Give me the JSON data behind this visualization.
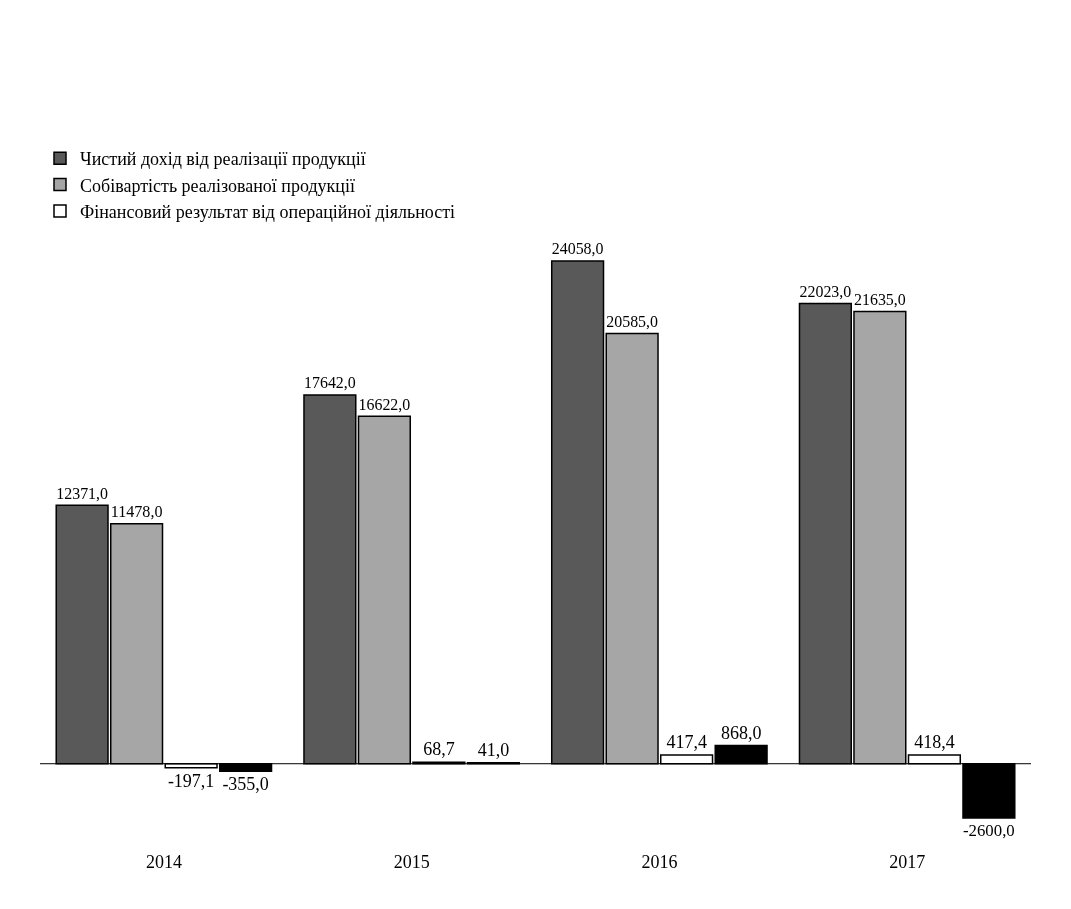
{
  "chart_data": {
    "type": "bar",
    "categories": [
      "2014",
      "2015",
      "2016",
      "2017"
    ],
    "series": [
      {
        "name": "Чистий дохід від реалізації продукції",
        "color": "#595959",
        "values": [
          12371.0,
          17642.0,
          24058.0,
          22023.0
        ],
        "value_labels": [
          "12371,0",
          "17642,0",
          "24058,0",
          "22023,0"
        ]
      },
      {
        "name": "Собівартість реалізованої продукції",
        "color": "#a6a6a6",
        "values": [
          11478.0,
          16622.0,
          20585.0,
          21635.0
        ],
        "value_labels": [
          "11478,0",
          "16622,0",
          "20585,0",
          "21635,0"
        ]
      },
      {
        "name": "Фінансовий результат від операційної діяльності",
        "color": "#ffffff",
        "values": [
          -197.1,
          68.7,
          417.4,
          418.4
        ],
        "value_labels": [
          "-197,1",
          "68,7",
          "417,4",
          "418,4"
        ]
      },
      {
        "color": "#000000",
        "values": [
          -355.0,
          41.0,
          868.0,
          -2600.0
        ],
        "value_labels": [
          "-355,0",
          "41,0",
          "868,0",
          "-2600,0"
        ]
      }
    ],
    "legend": "top left"
  }
}
